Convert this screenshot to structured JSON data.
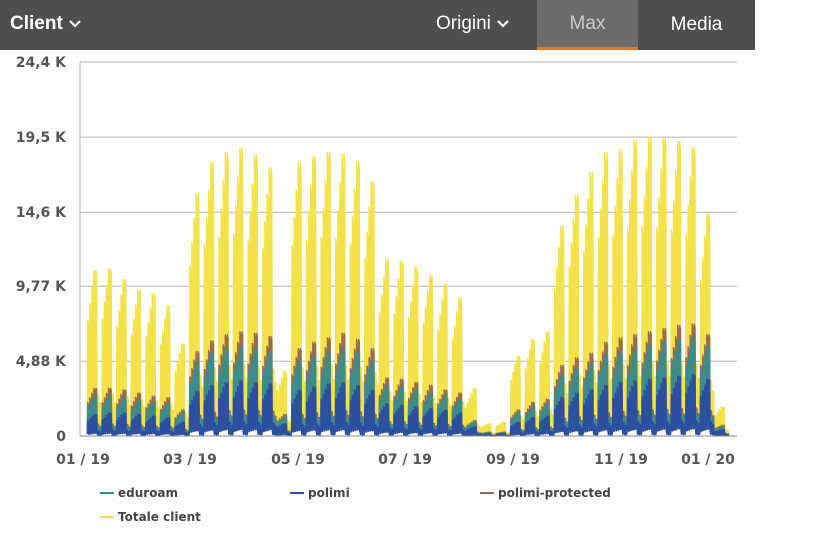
{
  "header": {
    "title": "Client",
    "origin_label": "Origini",
    "tabs": [
      "Max",
      "Media"
    ],
    "active_tab": "Max"
  },
  "colors": {
    "eduroam": "#3d8c8c",
    "polimi": "#2d4fa0",
    "polimi_protected": "#9a6b4d",
    "totale": "#f4e24a",
    "accent": "#e8761c"
  },
  "chart_data": {
    "type": "line",
    "x_ticks": [
      "01 / 19",
      "03 / 19",
      "05 / 19",
      "07 / 19",
      "09 / 19",
      "11 / 19",
      "01 / 20"
    ],
    "y_ticks": [
      "0",
      "4,88 K",
      "9,77 K",
      "14,6 K",
      "19,5 K",
      "24,4 K"
    ],
    "ylim": [
      0,
      24400
    ],
    "grid": true,
    "legend_position": "bottom",
    "series": [
      {
        "name": "eduroam",
        "key": "eduroam",
        "weekly_peaks": [
          2600,
          2600,
          2500,
          2300,
          2200,
          2100,
          1500,
          4800,
          5400,
          5700,
          5800,
          5700,
          5500,
          1200,
          4900,
          5200,
          5500,
          5700,
          5400,
          4900,
          3300,
          3200,
          3000,
          2800,
          2600,
          2400,
          900,
          200,
          200,
          1500,
          1900,
          2100,
          4000,
          4400,
          4700,
          5300,
          5500,
          5700,
          5900,
          6100,
          6300,
          6400,
          5800,
          600
        ],
        "peak_scale": [
          0.7,
          0.8,
          0.9,
          1,
          1,
          0.25,
          0.2
        ]
      },
      {
        "name": "polimi",
        "key": "polimi",
        "weekly_peaks": [
          1400,
          1500,
          1500,
          1400,
          1300,
          1200,
          900,
          2900,
          3300,
          3500,
          3600,
          3500,
          3400,
          800,
          3000,
          3200,
          3400,
          3500,
          3300,
          3000,
          2100,
          2000,
          1900,
          1800,
          1700,
          1500,
          600,
          150,
          150,
          900,
          1200,
          1300,
          2500,
          2800,
          3000,
          3300,
          3500,
          3600,
          3700,
          3800,
          3900,
          4000,
          3700,
          400
        ],
        "peak_scale": [
          0.7,
          0.8,
          0.9,
          1,
          1,
          0.25,
          0.2
        ]
      },
      {
        "name": "polimi-protected",
        "key": "polimi_protected",
        "weekly_peaks": [
          3100,
          3100,
          3000,
          2800,
          2600,
          2500,
          1700,
          5500,
          6200,
          6600,
          6800,
          6700,
          6500,
          1400,
          5700,
          6100,
          6400,
          6700,
          6300,
          5700,
          3800,
          3700,
          3500,
          3300,
          3000,
          2800,
          1000,
          250,
          250,
          1700,
          2200,
          2400,
          4600,
          5100,
          5400,
          6100,
          6400,
          6600,
          6800,
          7000,
          7200,
          7300,
          6600,
          700
        ],
        "peak_scale": [
          0.7,
          0.8,
          0.9,
          1,
          1,
          0.25,
          0.2
        ]
      },
      {
        "name": "Totale client",
        "key": "totale",
        "weekly_peaks": [
          10800,
          10900,
          10200,
          9500,
          9300,
          8500,
          6000,
          15800,
          17800,
          18500,
          18800,
          18300,
          17500,
          4200,
          17800,
          18200,
          18500,
          18400,
          17900,
          16600,
          11500,
          11400,
          11000,
          10500,
          9900,
          9000,
          3100,
          800,
          900,
          5200,
          6300,
          6800,
          13700,
          15700,
          17200,
          18500,
          18700,
          19300,
          19500,
          19400,
          19200,
          18800,
          14500,
          1900
        ],
        "peak_scale": [
          0.7,
          0.8,
          0.9,
          1,
          1,
          0.25,
          0.2
        ]
      }
    ]
  }
}
